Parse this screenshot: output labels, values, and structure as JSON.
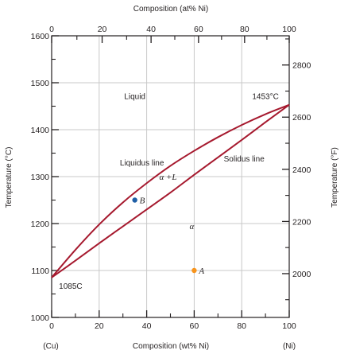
{
  "chart_data": {
    "type": "line",
    "x_top_label": "Composition (at% Ni)",
    "x_bottom_label": "Composition (wt% Ni)",
    "y_left_label": "Temperature (°C)",
    "y_right_label": "Temperature (°F)",
    "x_endpoint_left": "(Cu)",
    "x_endpoint_right": "(Ni)",
    "xlim": [
      0,
      100
    ],
    "ylim": [
      1000,
      1600
    ],
    "x_ticks": [
      "0",
      "20",
      "40",
      "60",
      "80",
      "100"
    ],
    "x_top_ticks": [
      {
        "at": 0,
        "wt": 0
      },
      {
        "at": 20,
        "wt": 21.25
      },
      {
        "at": 40,
        "wt": 41.85
      },
      {
        "at": 60,
        "wt": 61.82
      },
      {
        "at": 80,
        "wt": 81.21
      },
      {
        "at": 100,
        "wt": 100
      }
    ],
    "y_left_ticks": [
      "1000",
      "1100",
      "1200",
      "1300",
      "1400",
      "1500",
      "1600"
    ],
    "y_right_ticks": [
      {
        "label": "2000",
        "celsius": 1093.3
      },
      {
        "label": "2200",
        "celsius": 1204.4
      },
      {
        "label": "2400",
        "celsius": 1315.6
      },
      {
        "label": "2600",
        "celsius": 1426.7
      },
      {
        "label": "2800",
        "celsius": 1537.8
      }
    ],
    "grid": true,
    "series": [
      {
        "name": "Liquidus line",
        "color": "#a6192e",
        "x": [
          0,
          10,
          20,
          30,
          40,
          50,
          60,
          70,
          80,
          90,
          100
        ],
        "y": [
          1085,
          1144,
          1198,
          1245,
          1286,
          1323,
          1355,
          1384,
          1410,
          1433,
          1453
        ]
      },
      {
        "name": "Solidus line",
        "color": "#a6192e",
        "x": [
          0,
          10,
          20,
          30,
          40,
          50,
          60,
          70,
          80,
          90,
          100
        ],
        "y": [
          1085,
          1121,
          1158,
          1194,
          1230,
          1266,
          1304,
          1341,
          1378,
          1416,
          1453
        ]
      }
    ],
    "points": [
      {
        "label": "B",
        "x": 35,
        "y": 1250,
        "color": "#1f5fa6"
      },
      {
        "label": "A",
        "x": 60,
        "y": 1100,
        "color": "#f7941d"
      }
    ],
    "annotations": [
      {
        "text": "Liquid",
        "x": 35,
        "y": 1465
      },
      {
        "text": "1453°C",
        "x": 90,
        "y": 1465
      },
      {
        "text": "Liquidus line",
        "x": 38,
        "y": 1324
      },
      {
        "text": "Solidus line",
        "x": 81,
        "y": 1332
      },
      {
        "text": "α +L",
        "x": 49,
        "y": 1293
      },
      {
        "text": "α",
        "x": 59,
        "y": 1188
      },
      {
        "text": "1085C",
        "x": 8,
        "y": 1061
      }
    ]
  }
}
